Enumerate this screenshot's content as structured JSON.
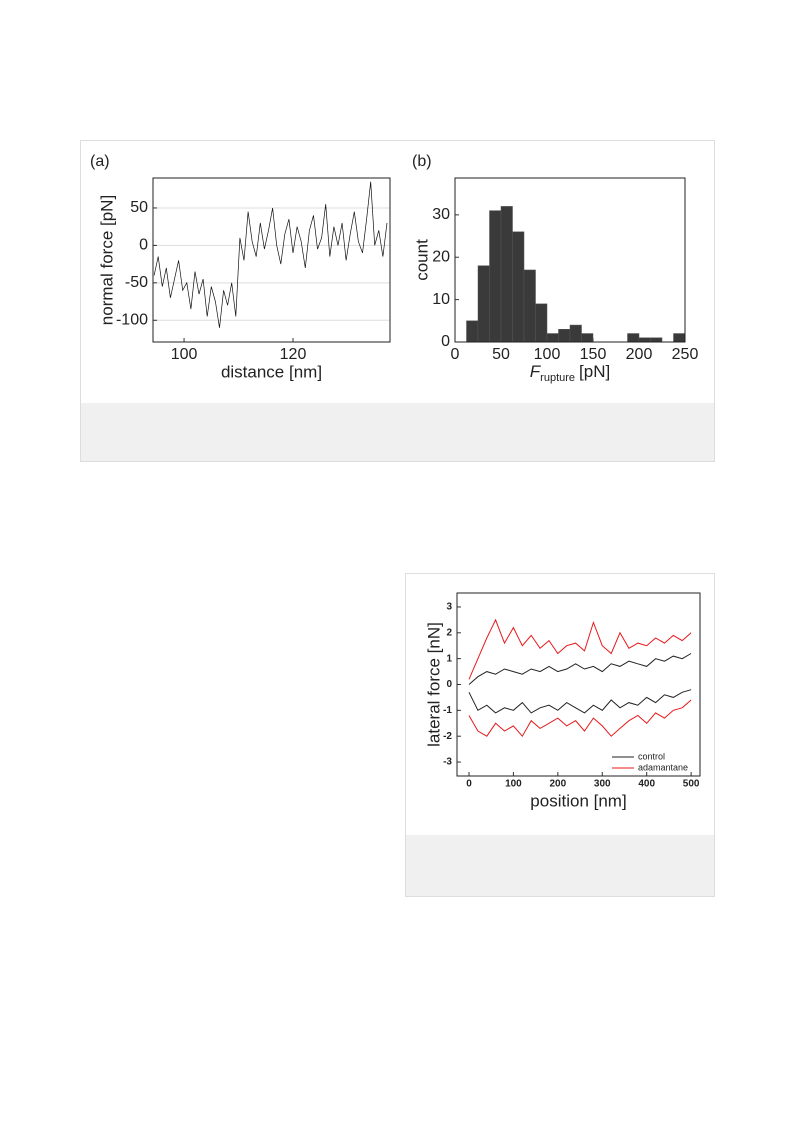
{
  "chart_data": [
    {
      "type": "line",
      "panel_label": "(a)",
      "x_label": "distance [nm]",
      "y_label": "normal force [pN]",
      "xlim": [
        94.3,
        137.8
      ],
      "xticks": [
        100,
        120
      ],
      "ylim": [
        -129,
        90
      ],
      "yticks": [
        -100,
        -50,
        0,
        50
      ],
      "grid": true,
      "color": "#111111",
      "x": [
        94.5,
        95.25,
        96,
        96.75,
        97.5,
        98.25,
        99,
        99.75,
        100.5,
        101.25,
        102,
        102.75,
        103.5,
        104.25,
        105,
        105.75,
        106.5,
        107.25,
        108,
        108.75,
        109.5,
        110.25,
        111,
        111.75,
        112.5,
        113.25,
        114,
        114.75,
        115.5,
        116.25,
        117,
        117.75,
        118.5,
        119.25,
        120,
        120.75,
        121.5,
        122.25,
        123,
        123.75,
        124.5,
        125.25,
        126,
        126.75,
        127.5,
        128.25,
        129,
        129.75,
        130.5,
        131.25,
        132,
        132.75,
        133.5,
        134.25,
        135,
        135.75,
        136.5,
        137.25
      ],
      "values": [
        -40,
        -15,
        -55,
        -30,
        -70,
        -45,
        -20,
        -60,
        -50,
        -85,
        -35,
        -65,
        -45,
        -95,
        -55,
        -75,
        -110,
        -60,
        -80,
        -50,
        -95,
        10,
        -20,
        45,
        5,
        -15,
        30,
        -5,
        20,
        50,
        0,
        -25,
        15,
        35,
        -10,
        25,
        5,
        -30,
        20,
        40,
        -5,
        10,
        55,
        -15,
        25,
        0,
        30,
        -20,
        15,
        45,
        5,
        -10,
        35,
        85,
        0,
        20,
        -15,
        30
      ]
    },
    {
      "type": "histogram",
      "panel_label": "(b)",
      "x_label": {
        "symbol": "F",
        "subscript": "rupture",
        "unit": "[pN]"
      },
      "y_label": "count",
      "xlim": [
        0,
        250
      ],
      "xticks": [
        0,
        50,
        100,
        150,
        200,
        250
      ],
      "ylim": [
        0,
        38.7
      ],
      "yticks": [
        0,
        10,
        20,
        30
      ],
      "color": "#3a3a3a",
      "bins": [
        12.5,
        25,
        37.5,
        50,
        62.5,
        75,
        87.5,
        100,
        112.5,
        125,
        137.5,
        150,
        162.5,
        175,
        187.5,
        200,
        212.5,
        225,
        237.5,
        250
      ],
      "values": [
        5,
        18,
        31,
        32,
        26,
        17,
        9,
        2,
        3,
        4,
        2,
        0,
        0,
        0,
        2,
        1,
        1,
        0,
        2
      ]
    },
    {
      "type": "line",
      "x_label": "position [nm]",
      "y_label": "lateral force [nN]",
      "xlim": [
        -27,
        520
      ],
      "xticks": [
        0,
        100,
        200,
        300,
        400,
        500
      ],
      "ylim": [
        -3.54,
        3.54
      ],
      "yticks": [
        -3,
        -2,
        -1,
        0,
        1,
        2,
        3
      ],
      "legend": "lower right",
      "x": [
        0,
        20,
        40,
        60,
        80,
        100,
        120,
        140,
        160,
        180,
        200,
        220,
        240,
        260,
        280,
        300,
        320,
        340,
        360,
        380,
        400,
        420,
        440,
        460,
        480,
        500
      ],
      "series": [
        {
          "name": "control",
          "color": "#222222",
          "values": [
            [
              0,
              0.3,
              0.5,
              0.4,
              0.6,
              0.5,
              0.4,
              0.6,
              0.5,
              0.7,
              0.5,
              0.6,
              0.8,
              0.6,
              0.7,
              0.5,
              0.8,
              0.7,
              0.9,
              0.8,
              0.7,
              1.0,
              0.9,
              1.1,
              1.0,
              1.2
            ],
            [
              -0.3,
              -1.0,
              -0.8,
              -1.1,
              -0.9,
              -1.0,
              -0.7,
              -1.1,
              -0.9,
              -0.8,
              -1.0,
              -0.7,
              -0.9,
              -1.1,
              -0.8,
              -1.0,
              -0.6,
              -0.9,
              -0.7,
              -0.8,
              -0.5,
              -0.7,
              -0.4,
              -0.5,
              -0.3,
              -0.2
            ]
          ]
        },
        {
          "name": "adamantane",
          "color": "#e8191c",
          "values": [
            [
              0.2,
              1.0,
              1.8,
              2.5,
              1.6,
              2.2,
              1.5,
              1.9,
              1.4,
              1.7,
              1.2,
              1.5,
              1.6,
              1.3,
              2.4,
              1.5,
              1.2,
              2.0,
              1.4,
              1.6,
              1.5,
              1.8,
              1.6,
              1.9,
              1.7,
              2.0
            ],
            [
              -1.2,
              -1.8,
              -2.0,
              -1.5,
              -1.8,
              -1.6,
              -2.0,
              -1.4,
              -1.7,
              -1.5,
              -1.3,
              -1.6,
              -1.4,
              -1.8,
              -1.3,
              -1.6,
              -2.0,
              -1.7,
              -1.4,
              -1.2,
              -1.5,
              -1.1,
              -1.3,
              -1.0,
              -0.9,
              -0.6
            ]
          ]
        }
      ]
    }
  ]
}
